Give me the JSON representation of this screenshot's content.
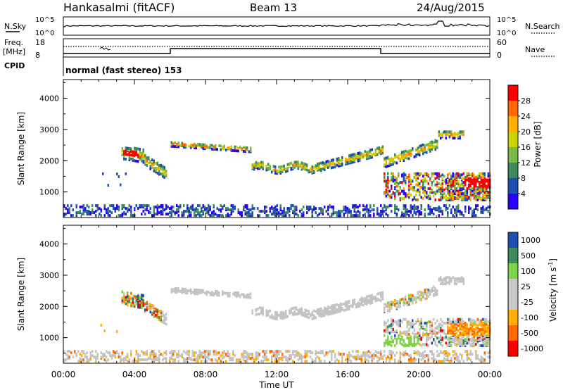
{
  "header": {
    "station": "Hankasalmi (fitACF)",
    "beam": "Beam 13",
    "date": "24/Aug/2015"
  },
  "noise_panel": {
    "left_label": "N.Sky",
    "right_label": "N.Search",
    "left_ticks": [
      "10^5",
      "10^0"
    ],
    "right_ticks": [
      "10^5",
      "10^0"
    ]
  },
  "freq_panel": {
    "left_label_1": "Freq.",
    "left_label_2": "[MHz]",
    "left_ticks": [
      "18",
      "8"
    ],
    "right_label": "Nave",
    "right_ticks": [
      "60",
      "0"
    ],
    "cpid_label": "CPID",
    "mode_text": "normal (fast stereo) 153"
  },
  "colors": {
    "power": [
      "#2a00ff",
      "#1f4fb0",
      "#3c8a5e",
      "#7ab84a",
      "#c8d400",
      "#ffb000",
      "#ff6a00",
      "#ff0000"
    ],
    "velocity": [
      "#ff0000",
      "#ff6a00",
      "#ffb000",
      "#c8c8c8",
      "#c8c8c8",
      "#7ed34a",
      "#3c8a5e",
      "#1f4fb0"
    ],
    "ground_scatter": "#c4c4c4"
  },
  "chart_data": [
    {
      "type": "heatmap",
      "name": "power",
      "ylabel": "Slant Range [km]",
      "x_ticks": [
        "00:00",
        "04:00",
        "08:00",
        "12:00",
        "16:00",
        "20:00",
        "00:00"
      ],
      "y_ticks": [
        "1000",
        "2000",
        "3000",
        "4000"
      ],
      "ylim": [
        180,
        4600
      ],
      "xlim_hours": [
        0,
        24
      ],
      "colorbar_label": "Power [dB]",
      "colorbar_ticks": [
        "4",
        "8",
        "12",
        "16",
        "20",
        "24",
        "28"
      ],
      "colorbar_range": [
        0,
        32
      ]
    },
    {
      "type": "heatmap",
      "name": "velocity",
      "ylabel": "Slant Range [km]",
      "xlabel": "Time UT",
      "x_ticks": [
        "00:00",
        "04:00",
        "08:00",
        "12:00",
        "16:00",
        "20:00",
        "00:00"
      ],
      "y_ticks": [
        "1000",
        "2000",
        "3000",
        "4000"
      ],
      "ylim": [
        180,
        4600
      ],
      "xlim_hours": [
        0,
        24
      ],
      "colorbar_label": "Velocity [m s^-1]",
      "colorbar_ticks": [
        "1000",
        "500",
        "100",
        "25",
        "-25",
        "-100",
        "-500",
        "-1000"
      ]
    }
  ]
}
